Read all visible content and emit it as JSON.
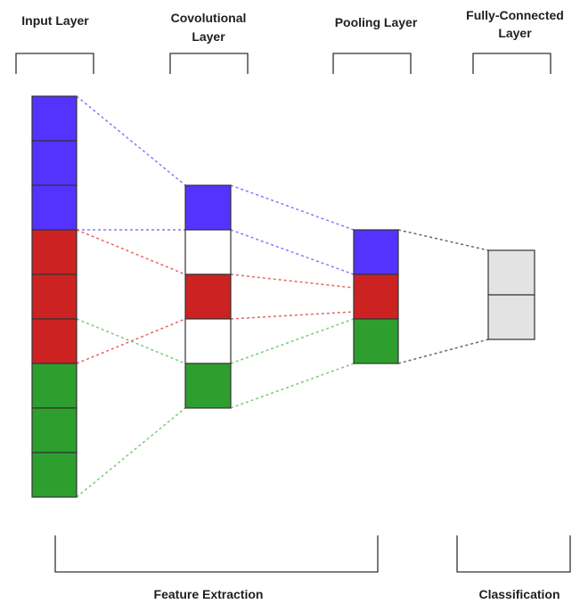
{
  "layers": [
    {
      "id": "input",
      "title_lines": [
        "Input Layer"
      ],
      "cells": [
        "blue",
        "blue",
        "blue",
        "red",
        "red",
        "red",
        "green",
        "green",
        "green"
      ]
    },
    {
      "id": "conv",
      "title_lines": [
        "Covolutional",
        "Layer"
      ],
      "cells": [
        "blue",
        "white",
        "red",
        "white",
        "green"
      ]
    },
    {
      "id": "pool",
      "title_lines": [
        "Pooling Layer"
      ],
      "cells": [
        "blue",
        "red",
        "green"
      ]
    },
    {
      "id": "fc",
      "title_lines": [
        "Fully-Connected",
        "Layer"
      ],
      "cells": [
        "gray",
        "gray"
      ]
    }
  ],
  "groups": [
    {
      "id": "feature-extraction",
      "label": "Feature Extraction"
    },
    {
      "id": "classification",
      "label": "Classification"
    }
  ],
  "colors": {
    "blue": "#5533ff",
    "red": "#cc2222",
    "green": "#2e9e2e",
    "white": "#ffffff",
    "gray": "#e3e3e3",
    "cell_border": "#333333",
    "bracket": "#333333",
    "dash_blue": "#8877ff",
    "dash_red": "#e06666",
    "dash_green": "#77cc77",
    "dash_gray": "#666666"
  }
}
